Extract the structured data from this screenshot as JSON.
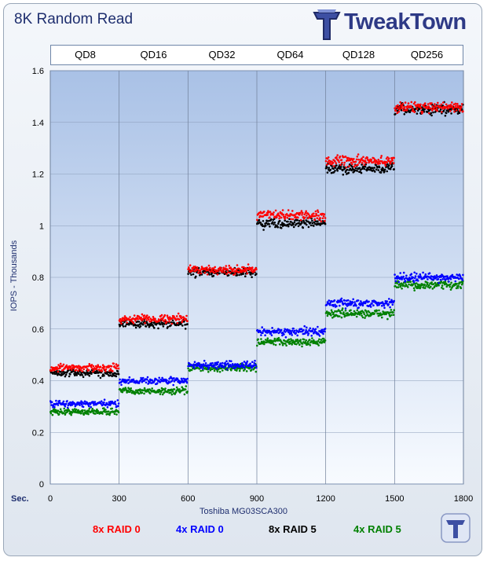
{
  "header": {
    "title": "8K Random Read",
    "logo_text": "TweakTown"
  },
  "axes": {
    "xlabel": "Toshiba MG03SCA300",
    "ylabel": "IOPS - Thousands",
    "x_unit": "Sec."
  },
  "queue_depths": [
    "QD8",
    "QD16",
    "QD32",
    "QD64",
    "QD128",
    "QD256"
  ],
  "chart_data": {
    "type": "scatter",
    "title": "8K Random Read",
    "xlabel": "Toshiba MG03SCA300",
    "ylabel": "IOPS - Thousands",
    "xlim": [
      0,
      1800
    ],
    "ylim": [
      0,
      1.6
    ],
    "x_ticks": [
      0,
      300,
      600,
      900,
      1200,
      1500,
      1800
    ],
    "y_ticks": [
      0,
      0.2,
      0.4,
      0.6,
      0.8,
      1,
      1.2,
      1.4,
      1.6
    ],
    "segments_sec": [
      [
        0,
        300
      ],
      [
        300,
        600
      ],
      [
        600,
        900
      ],
      [
        900,
        1200
      ],
      [
        1200,
        1500
      ],
      [
        1500,
        1800
      ]
    ],
    "grid": true,
    "legend_position": "bottom",
    "series": [
      {
        "name": "8x RAID 0",
        "color": "#ff0000",
        "values": [
          0.45,
          0.64,
          0.83,
          1.04,
          1.25,
          1.46
        ]
      },
      {
        "name": "4x RAID 0",
        "color": "#0000ff",
        "values": [
          0.31,
          0.4,
          0.46,
          0.59,
          0.7,
          0.8
        ]
      },
      {
        "name": "8x RAID 5",
        "color": "#000000",
        "values": [
          0.43,
          0.62,
          0.82,
          1.01,
          1.22,
          1.45
        ]
      },
      {
        "name": "4x RAID 5",
        "color": "#008000",
        "values": [
          0.28,
          0.36,
          0.45,
          0.55,
          0.66,
          0.77
        ]
      }
    ]
  }
}
